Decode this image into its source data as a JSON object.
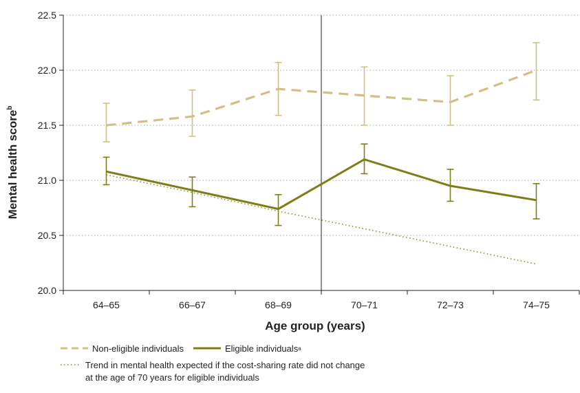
{
  "chart_data": {
    "type": "line",
    "xlabel": "Age group (years)",
    "ylabel": "Mental health score",
    "ylabel_superscript": "b",
    "categories": [
      "64–65",
      "66–67",
      "68–69",
      "70–71",
      "72–73",
      "74–75"
    ],
    "ylim": [
      20.0,
      22.5
    ],
    "yticks": [
      "20.0",
      "20.5",
      "21.0",
      "21.5",
      "22.0",
      "22.5"
    ],
    "grid": "horizontal dotted",
    "vertical_line_between": [
      "68–69",
      "70–71"
    ],
    "series": [
      {
        "name": "Non-eligible individuals",
        "style": "dashed",
        "color": "#cfc088",
        "values": [
          21.5,
          21.58,
          21.83,
          21.77,
          21.71,
          22.0
        ],
        "err_low": [
          21.35,
          21.4,
          21.59,
          21.5,
          21.5,
          21.73
        ],
        "err_high": [
          21.7,
          21.82,
          22.07,
          22.03,
          21.95,
          22.25
        ]
      },
      {
        "name": "Eligible individuals",
        "superscript": "a",
        "style": "solid",
        "color": "#7d7d1b",
        "values": [
          21.08,
          20.91,
          20.74,
          21.19,
          20.95,
          20.82
        ],
        "err_low": [
          20.96,
          20.76,
          20.59,
          21.06,
          20.81,
          20.65
        ],
        "err_high": [
          21.21,
          21.03,
          20.87,
          21.33,
          21.1,
          20.97
        ]
      },
      {
        "name": "Trend in mental health expected if the cost-sharing rate did not change at the age of 70 years for eligible individuals",
        "style": "dotted",
        "color": "#8a8a2a",
        "values": [
          21.05,
          20.89,
          20.72,
          20.56,
          20.4,
          20.24
        ]
      }
    ]
  },
  "legend": {
    "non_eligible": "Non-eligible individuals",
    "eligible": "Eligible individuals",
    "eligible_sup": "a",
    "trend_line1": "Trend in mental health expected if the cost-sharing rate did not change",
    "trend_line2": "at the age of 70 years for eligible individuals"
  }
}
